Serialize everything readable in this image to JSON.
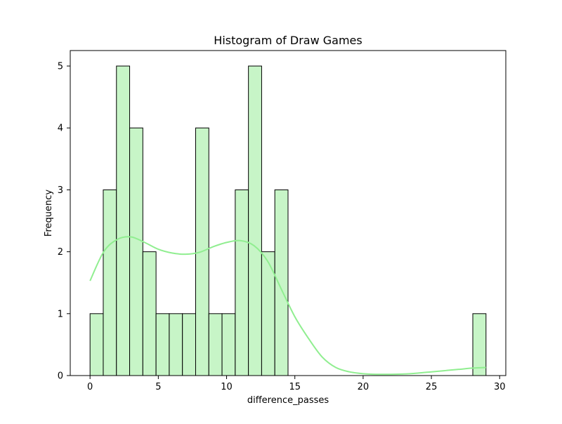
{
  "chart_data": {
    "type": "bar",
    "title": "Histogram of Draw Games",
    "xlabel": "difference_passes",
    "ylabel": "Frequency",
    "xlim": [
      -1.45,
      30.45
    ],
    "ylim": [
      0,
      5.25
    ],
    "xticks": [
      0,
      5,
      10,
      15,
      20,
      25,
      30
    ],
    "yticks": [
      0,
      1,
      2,
      3,
      4,
      5
    ],
    "grid": false,
    "bin_edges": [
      0,
      0.9667,
      1.9333,
      2.9,
      3.8667,
      4.8333,
      5.8,
      6.7667,
      7.7333,
      8.7,
      9.6667,
      10.6333,
      11.6,
      12.5667,
      13.5333,
      14.5,
      15.4667,
      16.4333,
      17.4,
      18.3667,
      19.3333,
      20.3,
      21.2667,
      22.2333,
      23.2,
      24.1667,
      25.1333,
      26.1,
      27.0667,
      28.0333,
      29.0
    ],
    "counts": [
      1,
      3,
      5,
      4,
      2,
      1,
      1,
      1,
      4,
      1,
      1,
      3,
      5,
      2,
      3,
      0,
      0,
      0,
      0,
      0,
      0,
      0,
      0,
      0,
      0,
      0,
      0,
      0,
      0,
      1
    ],
    "kde": {
      "x": [
        0,
        1,
        2,
        3,
        4,
        5,
        6,
        7,
        8,
        9,
        10,
        11,
        12,
        13,
        14,
        15,
        16,
        17,
        18,
        19,
        20,
        21,
        22,
        23,
        24,
        25,
        26,
        27,
        28,
        29
      ],
      "y": [
        1.53,
        2.0,
        2.2,
        2.24,
        2.15,
        2.04,
        1.98,
        1.96,
        1.99,
        2.08,
        2.15,
        2.18,
        2.1,
        1.85,
        1.4,
        0.95,
        0.6,
        0.3,
        0.13,
        0.06,
        0.03,
        0.02,
        0.02,
        0.025,
        0.04,
        0.06,
        0.08,
        0.1,
        0.12,
        0.13
      ]
    },
    "colors": {
      "bar_fill": "#c7f5c7",
      "bar_edge": "#000000",
      "kde_line": "#90ee90"
    }
  }
}
